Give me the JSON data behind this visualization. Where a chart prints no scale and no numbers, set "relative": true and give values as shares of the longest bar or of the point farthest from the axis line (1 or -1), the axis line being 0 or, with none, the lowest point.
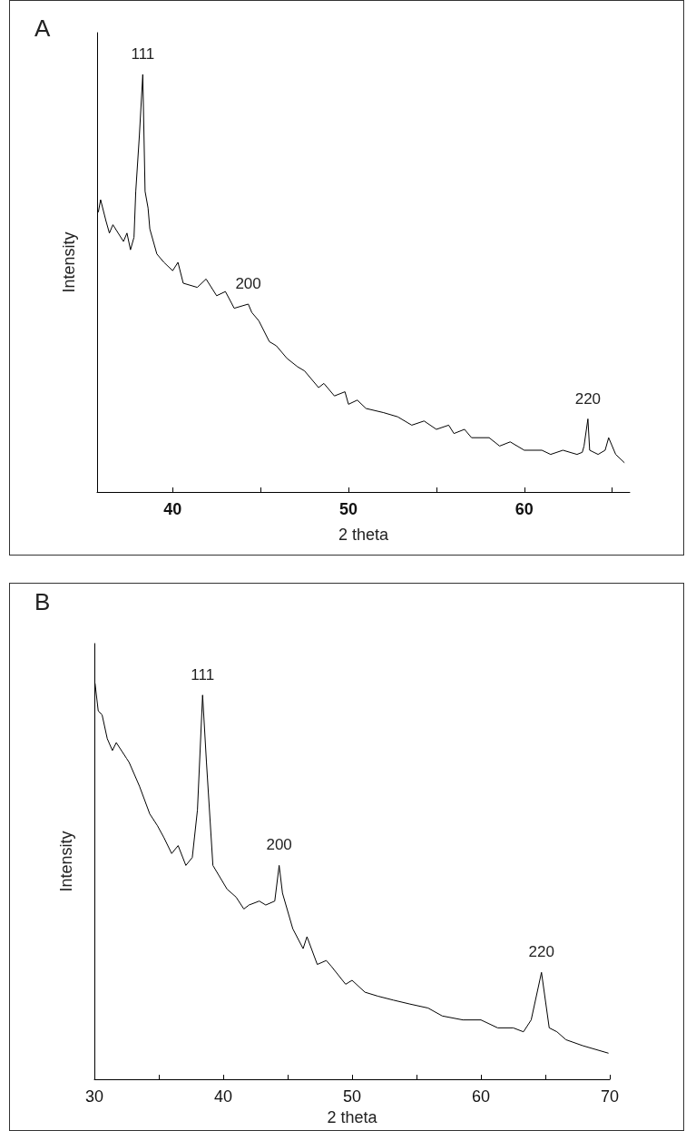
{
  "chart_data": [
    {
      "type": "line",
      "title": "A",
      "xlabel": "2 theta",
      "ylabel": "Intensity",
      "relative": true,
      "xlim": [
        35.7,
        66
      ],
      "xticks": [
        40,
        {
          "value": 45,
          "label": null
        },
        50,
        {
          "value": 55,
          "label": null
        },
        60,
        {
          "value": 65,
          "label": null
        }
      ],
      "grid": false,
      "marker": "none",
      "line_style": "solid",
      "series": [
        {
          "color": "#000000",
          "x": [
            35.77,
            35.9,
            36.2,
            36.4,
            36.6,
            37.2,
            37.4,
            37.6,
            37.8,
            37.9,
            38.1,
            38.3,
            38.43,
            38.6,
            38.7,
            39.1,
            39.5,
            40,
            40.3,
            40.6,
            41.4,
            41.9,
            42.5,
            43,
            43.5,
            44.3,
            44.5,
            44.9,
            45.5,
            45.9,
            46.5,
            47.1,
            47.5,
            48.3,
            48.6,
            49.2,
            49.8,
            50,
            50.5,
            51,
            52,
            52.8,
            53.6,
            54.3,
            55,
            55.7,
            56,
            56.6,
            57,
            58,
            58.6,
            59.2,
            60,
            61,
            61.5,
            62.2,
            63,
            63.3,
            63.4,
            63.62,
            63.72,
            64.2,
            64.6,
            64.8,
            65.2,
            65.7
          ],
          "values": [
            0.67,
            0.7,
            0.65,
            0.62,
            0.64,
            0.6,
            0.62,
            0.58,
            0.61,
            0.72,
            0.85,
            1,
            0.72,
            0.68,
            0.63,
            0.57,
            0.55,
            0.53,
            0.55,
            0.5,
            0.49,
            0.51,
            0.47,
            0.48,
            0.44,
            0.45,
            0.43,
            0.41,
            0.36,
            0.35,
            0.32,
            0.3,
            0.29,
            0.25,
            0.26,
            0.23,
            0.24,
            0.21,
            0.22,
            0.2,
            0.19,
            0.18,
            0.16,
            0.17,
            0.15,
            0.16,
            0.14,
            0.15,
            0.13,
            0.13,
            0.11,
            0.12,
            0.1,
            0.1,
            0.09,
            0.1,
            0.09,
            0.095,
            0.11,
            0.175,
            0.1,
            0.09,
            0.1,
            0.13,
            0.09,
            0.07
          ]
        }
      ],
      "annotations": [
        {
          "text": "111",
          "x": 38.3,
          "y": 1
        },
        {
          "text": "200",
          "x": 44.3,
          "y": 0.45
        },
        {
          "text": "220",
          "x": 63.62,
          "y": 0.175
        }
      ]
    },
    {
      "type": "line",
      "title": "B",
      "xlabel": "2 theta",
      "ylabel": "Intensity",
      "relative": true,
      "xlim": [
        30,
        70
      ],
      "xticks": [
        30,
        {
          "value": 35,
          "label": null
        },
        40,
        {
          "value": 45,
          "label": null
        },
        50,
        {
          "value": 55,
          "label": null
        },
        60,
        {
          "value": 65,
          "label": null
        },
        70
      ],
      "grid": false,
      "marker": "none",
      "line_style": "solid",
      "series": [
        {
          "color": "#000000",
          "x": [
            30.05,
            30.3,
            30.6,
            31,
            31.4,
            31.7,
            32.5,
            32.7,
            33.5,
            34.3,
            34.9,
            35.4,
            36,
            36.5,
            37.1,
            37.6,
            38,
            38.4,
            38.7,
            39.2,
            40.3,
            41,
            41.6,
            42,
            42.8,
            43.3,
            44,
            44.34,
            44.6,
            45.4,
            46.2,
            46.5,
            47.3,
            48,
            48.4,
            49.5,
            50,
            51,
            52,
            53.2,
            54.5,
            55.9,
            57,
            58.6,
            60,
            61.3,
            62.5,
            63.3,
            63.9,
            64.7,
            65.3,
            65.9,
            66.6,
            67.9,
            69.9
          ],
          "values": [
            1,
            0.93,
            0.92,
            0.86,
            0.83,
            0.85,
            0.81,
            0.8,
            0.74,
            0.67,
            0.64,
            0.61,
            0.57,
            0.59,
            0.54,
            0.56,
            0.68,
            0.97,
            0.8,
            0.54,
            0.48,
            0.46,
            0.43,
            0.44,
            0.45,
            0.44,
            0.45,
            0.54,
            0.47,
            0.38,
            0.33,
            0.36,
            0.29,
            0.3,
            0.285,
            0.24,
            0.25,
            0.22,
            0.21,
            0.2,
            0.19,
            0.18,
            0.16,
            0.15,
            0.15,
            0.13,
            0.13,
            0.12,
            0.15,
            0.27,
            0.13,
            0.12,
            0.1,
            0.085,
            0.066
          ]
        }
      ],
      "annotations": [
        {
          "text": "111",
          "x": 38.4,
          "y": 0.97
        },
        {
          "text": "200",
          "x": 44.34,
          "y": 0.54
        },
        {
          "text": "220",
          "x": 64.7,
          "y": 0.27
        }
      ]
    }
  ]
}
